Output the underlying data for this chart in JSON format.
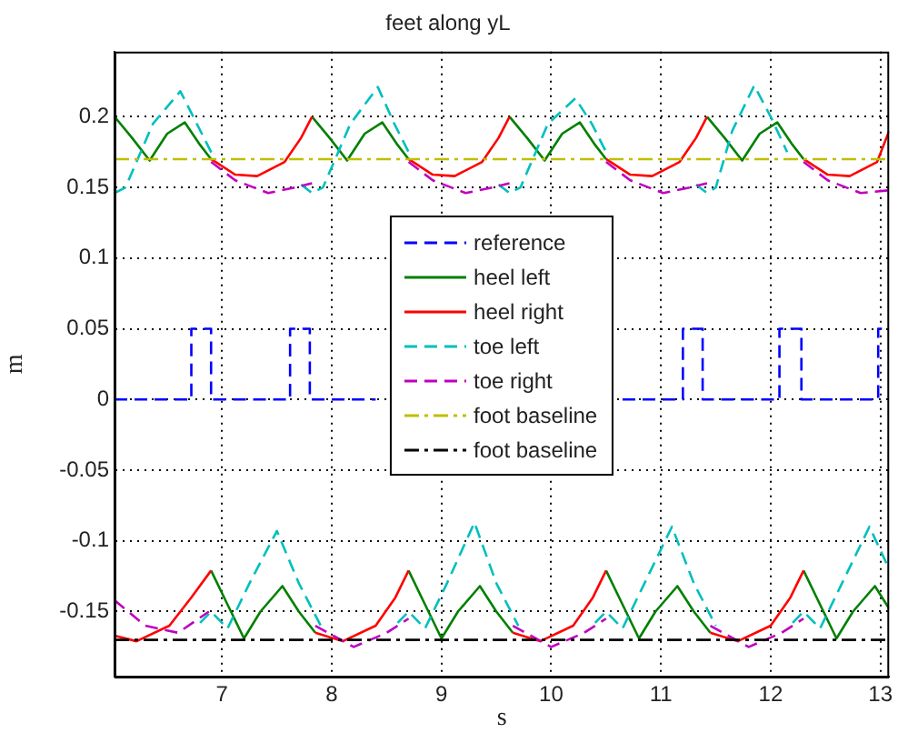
{
  "chart_data": {
    "type": "line",
    "title": "feet along yL",
    "xlabel": "s",
    "ylabel": "m",
    "xlim": [
      6.02,
      13.08
    ],
    "xticks": [
      7,
      8,
      9,
      10,
      11,
      12,
      13
    ],
    "ylim": [
      -0.196,
      0.246
    ],
    "yticks": [
      -0.15,
      -0.1,
      -0.05,
      0,
      0.05,
      0.1,
      0.15,
      0.2
    ],
    "grid": true,
    "legend": "center",
    "marker": "none",
    "series": [
      {
        "name": "reference",
        "color": "#0000ff",
        "line_style": "dashed",
        "x": [
          6.02,
          6.72,
          6.72,
          6.9,
          6.9,
          7.62,
          7.62,
          7.8,
          7.8,
          8.4,
          null,
          10.65,
          11.2,
          11.2,
          11.38,
          11.38,
          12.08,
          12.08,
          12.28,
          12.28,
          12.98,
          12.98,
          13.08
        ],
        "values": [
          0,
          0,
          0.05,
          0.05,
          0,
          0,
          0.05,
          0.05,
          0,
          0,
          null,
          0,
          0,
          0.05,
          0.05,
          0,
          0,
          0.05,
          0.05,
          0,
          0,
          0.05,
          0.05
        ]
      },
      {
        "name": "heel left",
        "color": "#008000",
        "line_style": "solid",
        "x": [
          6.02,
          6.18,
          6.34,
          6.5,
          6.66,
          6.8,
          6.9,
          null,
          7.82,
          7.98,
          8.14,
          8.3,
          8.46,
          8.6,
          8.7,
          null,
          9.62,
          9.78,
          9.94,
          10.1,
          10.26,
          10.4,
          10.5,
          null,
          11.42,
          11.58,
          11.74,
          11.9,
          12.06,
          12.2,
          12.3,
          null,
          6.9,
          7.05,
          7.2,
          7.35,
          7.55,
          7.7,
          7.85,
          null,
          8.7,
          8.85,
          9.0,
          9.15,
          9.35,
          9.5,
          9.65,
          null,
          10.5,
          10.65,
          10.8,
          10.95,
          11.15,
          11.3,
          11.45,
          null,
          12.3,
          12.45,
          12.6,
          12.75,
          12.95,
          13.08
        ],
        "values": [
          0.2,
          0.185,
          0.169,
          0.188,
          0.196,
          0.18,
          0.17,
          null,
          0.2,
          0.185,
          0.169,
          0.188,
          0.196,
          0.18,
          0.17,
          null,
          0.2,
          0.185,
          0.169,
          0.188,
          0.196,
          0.18,
          0.17,
          null,
          0.2,
          0.185,
          0.169,
          0.188,
          0.196,
          0.18,
          0.17,
          null,
          -0.121,
          -0.145,
          -0.169,
          -0.15,
          -0.132,
          -0.15,
          -0.165,
          null,
          -0.121,
          -0.145,
          -0.169,
          -0.15,
          -0.132,
          -0.15,
          -0.165,
          null,
          -0.121,
          -0.145,
          -0.169,
          -0.15,
          -0.132,
          -0.15,
          -0.165,
          null,
          -0.121,
          -0.145,
          -0.169,
          -0.15,
          -0.132,
          -0.148
        ]
      },
      {
        "name": "heel right",
        "color": "#ff0000",
        "line_style": "solid",
        "x": [
          6.9,
          7.12,
          7.32,
          7.57,
          7.72,
          7.82,
          null,
          8.7,
          8.92,
          9.12,
          9.37,
          9.52,
          9.62,
          null,
          10.5,
          10.72,
          10.92,
          11.17,
          11.32,
          11.42,
          null,
          12.3,
          12.52,
          12.72,
          12.97,
          13.08,
          null,
          6.02,
          6.22,
          6.52,
          6.72,
          6.9,
          null,
          7.85,
          8.1,
          8.4,
          8.58,
          8.7,
          null,
          9.65,
          9.9,
          10.2,
          10.38,
          10.5,
          null,
          11.45,
          11.7,
          12.0,
          12.18,
          12.3
        ],
        "values": [
          0.17,
          0.159,
          0.158,
          0.168,
          0.185,
          0.2,
          null,
          0.17,
          0.159,
          0.158,
          0.168,
          0.185,
          0.2,
          null,
          0.17,
          0.159,
          0.158,
          0.168,
          0.185,
          0.2,
          null,
          0.17,
          0.159,
          0.158,
          0.168,
          0.19,
          null,
          -0.167,
          -0.171,
          -0.16,
          -0.14,
          -0.121,
          null,
          -0.165,
          -0.171,
          -0.16,
          -0.14,
          -0.121,
          null,
          -0.165,
          -0.171,
          -0.16,
          -0.14,
          -0.121,
          null,
          -0.165,
          -0.171,
          -0.16,
          -0.14,
          -0.121
        ]
      },
      {
        "name": "toe left",
        "color": "#00bfbf",
        "line_style": "dashed",
        "x": [
          6.02,
          6.12,
          6.37,
          6.62,
          6.77,
          6.92,
          null,
          7.72,
          7.82,
          7.92,
          8.17,
          8.42,
          8.57,
          8.72,
          null,
          9.52,
          9.62,
          9.72,
          9.97,
          10.22,
          10.37,
          10.52,
          null,
          11.32,
          11.42,
          11.5,
          11.65,
          11.85,
          12.0,
          12.15,
          null,
          6.8,
          6.9,
          7.05,
          7.25,
          7.5,
          7.7,
          7.9,
          null,
          8.6,
          8.7,
          8.85,
          9.05,
          9.3,
          9.5,
          9.7,
          null,
          10.4,
          10.5,
          10.65,
          10.85,
          11.1,
          11.3,
          11.5,
          null,
          12.2,
          12.3,
          12.45,
          12.65,
          12.9,
          13.08
        ],
        "values": [
          0.146,
          0.15,
          0.195,
          0.218,
          0.195,
          0.172,
          null,
          0.152,
          0.146,
          0.15,
          0.195,
          0.221,
          0.195,
          0.172,
          null,
          0.152,
          0.146,
          0.15,
          0.195,
          0.213,
          0.195,
          0.172,
          null,
          0.152,
          0.146,
          0.15,
          0.19,
          0.222,
          0.2,
          0.175,
          null,
          -0.158,
          -0.15,
          -0.162,
          -0.13,
          -0.093,
          -0.13,
          -0.16,
          null,
          -0.158,
          -0.15,
          -0.162,
          -0.13,
          -0.087,
          -0.13,
          -0.16,
          null,
          -0.158,
          -0.15,
          -0.162,
          -0.13,
          -0.09,
          -0.13,
          -0.16,
          null,
          -0.158,
          -0.15,
          -0.162,
          -0.13,
          -0.09,
          -0.12
        ]
      },
      {
        "name": "toe right",
        "color": "#bf00bf",
        "line_style": "dashed",
        "x": [
          6.9,
          7.12,
          7.42,
          7.67,
          7.82,
          null,
          8.7,
          8.92,
          9.22,
          9.47,
          9.62,
          null,
          10.5,
          10.72,
          11.02,
          11.27,
          11.42,
          null,
          12.3,
          12.52,
          12.82,
          13.08,
          null,
          6.02,
          6.3,
          6.6,
          6.88,
          null,
          7.85,
          8.2,
          8.5,
          8.7,
          null,
          9.65,
          10.0,
          10.3,
          10.5,
          null,
          11.45,
          11.8,
          12.1,
          12.3
        ],
        "values": [
          0.168,
          0.155,
          0.146,
          0.15,
          0.153,
          null,
          0.168,
          0.155,
          0.146,
          0.15,
          0.153,
          null,
          0.168,
          0.155,
          0.146,
          0.15,
          0.153,
          null,
          0.168,
          0.155,
          0.146,
          0.148,
          null,
          -0.142,
          -0.16,
          -0.165,
          -0.15,
          null,
          -0.16,
          -0.175,
          -0.165,
          -0.155,
          null,
          -0.16,
          -0.175,
          -0.165,
          -0.155,
          null,
          -0.16,
          -0.175,
          -0.165,
          -0.155
        ]
      },
      {
        "name": "foot baseline",
        "color": "#bfbf00",
        "line_style": "dashdot",
        "x": [
          6.02,
          13.08
        ],
        "values": [
          0.17,
          0.17
        ]
      },
      {
        "name": "foot baseline",
        "color": "#000000",
        "line_style": "dashdot",
        "x": [
          6.02,
          13.08
        ],
        "values": [
          -0.17,
          -0.17
        ]
      }
    ]
  }
}
